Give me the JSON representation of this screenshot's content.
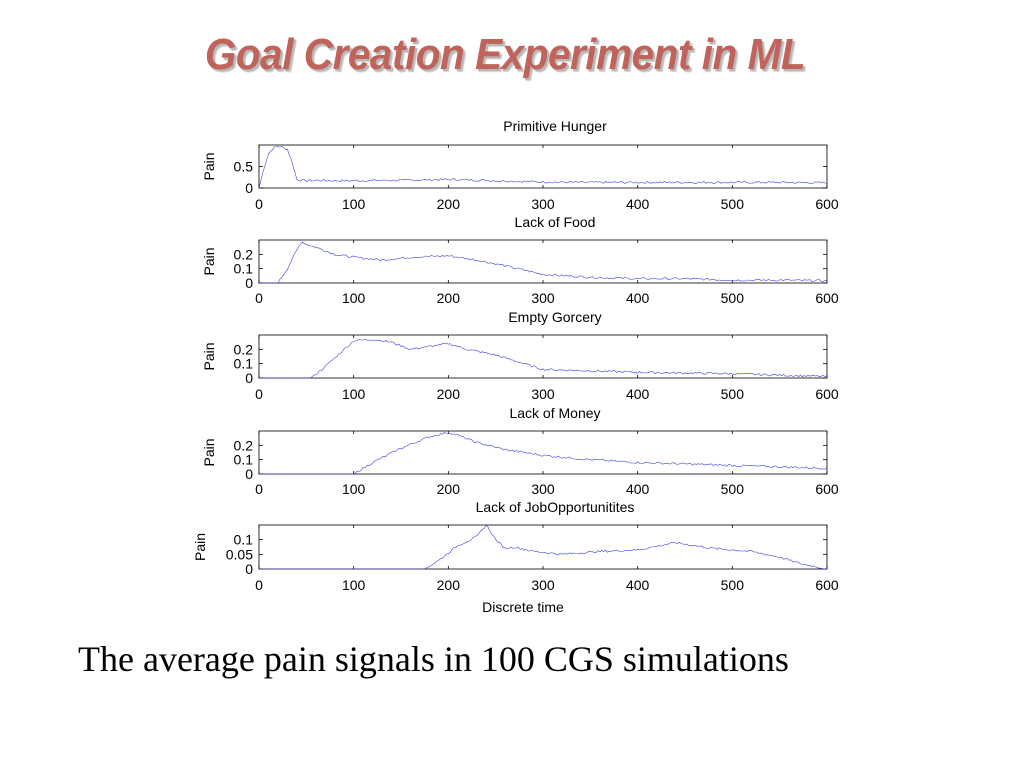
{
  "slide": {
    "title": "Goal Creation Experiment in ML",
    "caption": "The average pain signals in 100 CGS simulations"
  },
  "colors": {
    "title": "#c0635a",
    "line": "#4040e0"
  },
  "chart_data": [
    {
      "type": "line",
      "title": "Primitive Hunger",
      "xlabel": "",
      "ylabel": "Pain",
      "xlim": [
        0,
        600
      ],
      "ylim": [
        0,
        1
      ],
      "xticks": [
        0,
        100,
        200,
        300,
        400,
        500,
        600
      ],
      "yticks": [
        0,
        0.5
      ],
      "ytick_labels": [
        "0",
        "0.5"
      ],
      "series": [
        {
          "x": [
            0,
            5,
            10,
            15,
            20,
            25,
            30,
            35,
            40,
            45,
            50,
            60,
            80,
            100,
            150,
            200,
            250,
            300,
            350,
            400,
            450,
            500,
            550,
            600
          ],
          "values": [
            0.0,
            0.45,
            0.8,
            0.93,
            0.97,
            0.95,
            0.9,
            0.6,
            0.2,
            0.18,
            0.17,
            0.18,
            0.17,
            0.17,
            0.18,
            0.2,
            0.17,
            0.14,
            0.13,
            0.13,
            0.13,
            0.13,
            0.13,
            0.12
          ]
        }
      ]
    },
    {
      "type": "line",
      "title": "Lack of Food",
      "xlabel": "",
      "ylabel": "Pain",
      "xlim": [
        0,
        600
      ],
      "ylim": [
        0,
        0.3
      ],
      "xticks": [
        0,
        100,
        200,
        300,
        400,
        500,
        600
      ],
      "yticks": [
        0,
        0.1,
        0.2
      ],
      "ytick_labels": [
        "0",
        "0.1",
        "0.2"
      ],
      "series": [
        {
          "x": [
            0,
            20,
            30,
            40,
            45,
            50,
            60,
            80,
            100,
            130,
            160,
            200,
            230,
            260,
            300,
            350,
            400,
            450,
            500,
            550,
            600
          ],
          "values": [
            0,
            0.0,
            0.1,
            0.23,
            0.29,
            0.27,
            0.25,
            0.2,
            0.18,
            0.16,
            0.18,
            0.19,
            0.16,
            0.12,
            0.06,
            0.04,
            0.03,
            0.03,
            0.02,
            0.02,
            0.015
          ]
        }
      ]
    },
    {
      "type": "line",
      "title": "Empty Gorcery",
      "xlabel": "",
      "ylabel": "Pain",
      "xlim": [
        0,
        600
      ],
      "ylim": [
        0,
        0.3
      ],
      "xticks": [
        0,
        100,
        200,
        300,
        400,
        500,
        600
      ],
      "yticks": [
        0,
        0.1,
        0.2
      ],
      "ytick_labels": [
        "0",
        "0.1",
        "0.2"
      ],
      "series": [
        {
          "x": [
            0,
            55,
            70,
            90,
            100,
            120,
            140,
            160,
            180,
            200,
            220,
            250,
            280,
            300,
            350,
            400,
            450,
            500,
            550,
            600
          ],
          "values": [
            0,
            0.0,
            0.08,
            0.2,
            0.26,
            0.27,
            0.25,
            0.2,
            0.22,
            0.24,
            0.2,
            0.16,
            0.1,
            0.06,
            0.05,
            0.04,
            0.035,
            0.03,
            0.02,
            0.01
          ]
        }
      ]
    },
    {
      "type": "line",
      "title": "Lack of Money",
      "xlabel": "",
      "ylabel": "Pain",
      "xlim": [
        0,
        600
      ],
      "ylim": [
        0,
        0.3
      ],
      "xticks": [
        0,
        100,
        200,
        300,
        400,
        500,
        600
      ],
      "yticks": [
        0,
        0.1,
        0.2
      ],
      "ytick_labels": [
        "0",
        "0.1",
        "0.2"
      ],
      "series": [
        {
          "x": [
            0,
            100,
            120,
            150,
            180,
            200,
            210,
            230,
            260,
            300,
            350,
            400,
            450,
            500,
            550,
            600
          ],
          "values": [
            0,
            0.0,
            0.08,
            0.18,
            0.26,
            0.29,
            0.27,
            0.22,
            0.17,
            0.13,
            0.1,
            0.08,
            0.07,
            0.06,
            0.05,
            0.04
          ]
        }
      ]
    },
    {
      "type": "line",
      "title": "Lack of JobOpportunitites",
      "xlabel": "Discrete time",
      "ylabel": "Pain",
      "xlim": [
        0,
        600
      ],
      "ylim": [
        0,
        0.15
      ],
      "xticks": [
        0,
        100,
        200,
        300,
        400,
        500,
        600
      ],
      "yticks": [
        0,
        0.05,
        0.1
      ],
      "ytick_labels": [
        "0",
        "0.05",
        "0.1"
      ],
      "series": [
        {
          "x": [
            0,
            175,
            190,
            210,
            230,
            240,
            250,
            260,
            270,
            290,
            320,
            360,
            400,
            440,
            460,
            480,
            520,
            550,
            570,
            600
          ],
          "values": [
            0,
            0.0,
            0.03,
            0.08,
            0.11,
            0.15,
            0.1,
            0.07,
            0.075,
            0.06,
            0.05,
            0.06,
            0.065,
            0.09,
            0.08,
            0.07,
            0.06,
            0.04,
            0.02,
            0.0
          ]
        }
      ]
    }
  ]
}
